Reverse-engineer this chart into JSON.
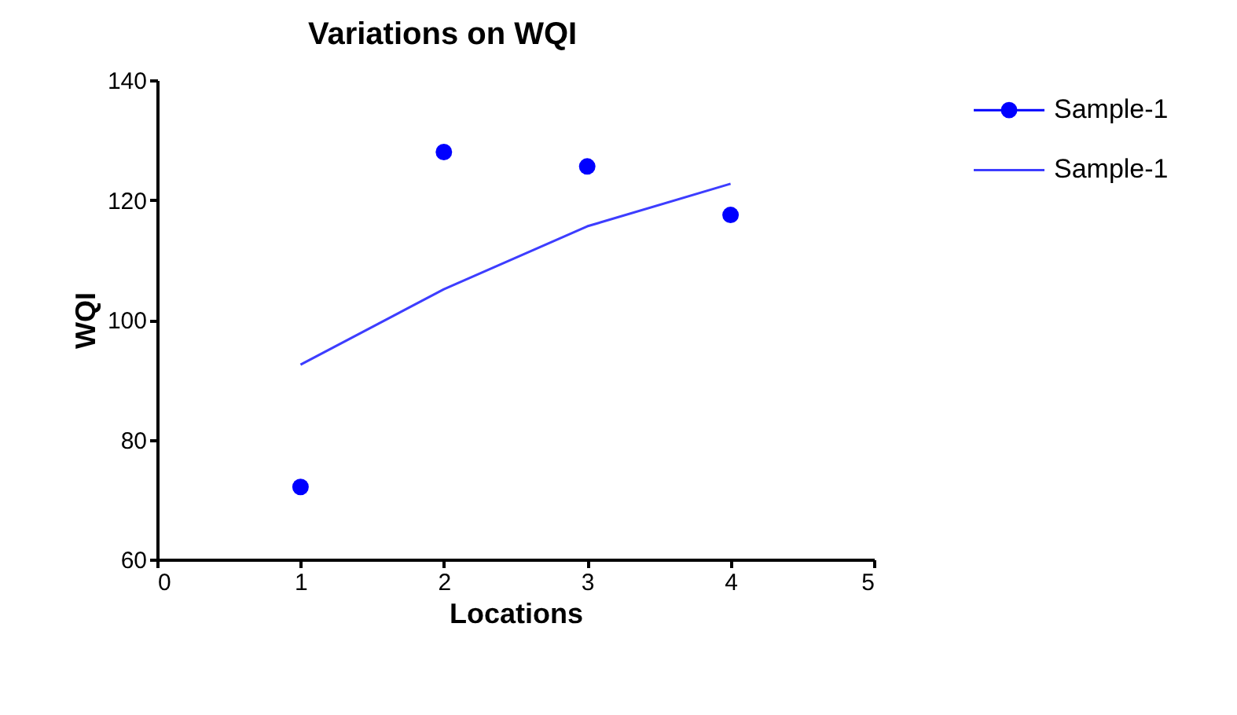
{
  "chart_data": {
    "type": "scatter",
    "title": "Variations on WQI",
    "xlabel": "Locations",
    "ylabel": "WQI",
    "x": [
      1,
      2,
      3,
      4
    ],
    "series": [
      {
        "name": "Sample-1",
        "color": "#0000ff",
        "marker": "circle",
        "values": [
          72.1,
          128.0,
          125.6,
          117.5
        ]
      },
      {
        "name": "Sample-1",
        "type": "line",
        "color": "#3d3dff",
        "line_style": "solid",
        "values": [
          92.5,
          105.1,
          115.6,
          122.7
        ]
      }
    ],
    "xlim": [
      0,
      5
    ],
    "xticks": [
      0,
      1,
      2,
      3,
      4,
      5
    ],
    "ylim": [
      60,
      140
    ],
    "yticks": [
      60,
      80,
      100,
      120,
      140
    ],
    "grid": false,
    "legend": "top right"
  }
}
